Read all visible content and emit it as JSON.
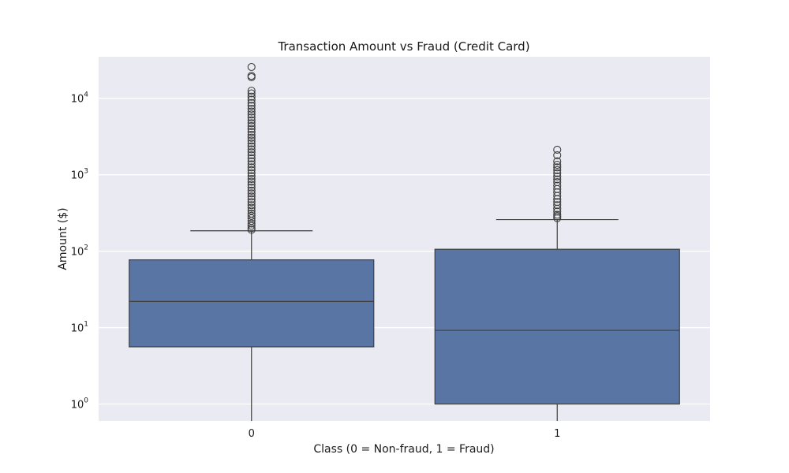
{
  "chart_data": {
    "type": "box",
    "title": "Transaction Amount vs Fraud (Credit Card)",
    "xlabel": "Class (0 = Non-fraud, 1 = Fraud)",
    "ylabel": "Amount ($)",
    "y_scale": "log",
    "ylim": [
      0.6,
      35000
    ],
    "grid": true,
    "categories": [
      "0",
      "1"
    ],
    "y_ticks": [
      {
        "base": "10",
        "exp": "0",
        "value": 1
      },
      {
        "base": "10",
        "exp": "1",
        "value": 10
      },
      {
        "base": "10",
        "exp": "2",
        "value": 100
      },
      {
        "base": "10",
        "exp": "3",
        "value": 1000
      },
      {
        "base": "10",
        "exp": "4",
        "value": 10000
      }
    ],
    "boxes": [
      {
        "category": "0",
        "whisker_low": 0.5,
        "q1": 5.6,
        "median": 22,
        "q3": 77,
        "whisker_high": 185,
        "outliers": [
          190,
          200,
          215,
          230,
          250,
          270,
          290,
          310,
          340,
          370,
          400,
          440,
          480,
          520,
          570,
          620,
          680,
          740,
          810,
          880,
          960,
          1050,
          1150,
          1250,
          1370,
          1500,
          1640,
          1800,
          1970,
          2150,
          2350,
          2570,
          2800,
          3050,
          3330,
          3640,
          3970,
          4330,
          4730,
          5160,
          5630,
          6150,
          6700,
          7300,
          8000,
          8700,
          9600,
          10500,
          11600,
          12600,
          18900,
          19700,
          25700
        ]
      },
      {
        "category": "1",
        "whisker_low": 0.5,
        "q1": 1.0,
        "median": 9.2,
        "q3": 106,
        "whisker_high": 259,
        "outliers": [
          270,
          285,
          300,
          330,
          360,
          400,
          440,
          480,
          530,
          590,
          650,
          720,
          800,
          870,
          950,
          1050,
          1150,
          1250,
          1350,
          1500,
          1800,
          2125
        ]
      }
    ],
    "box_color": "#5975a4",
    "line_color": "#3f3f3f",
    "background_color": "#eaeaf2",
    "grid_color": "#ffffff"
  }
}
